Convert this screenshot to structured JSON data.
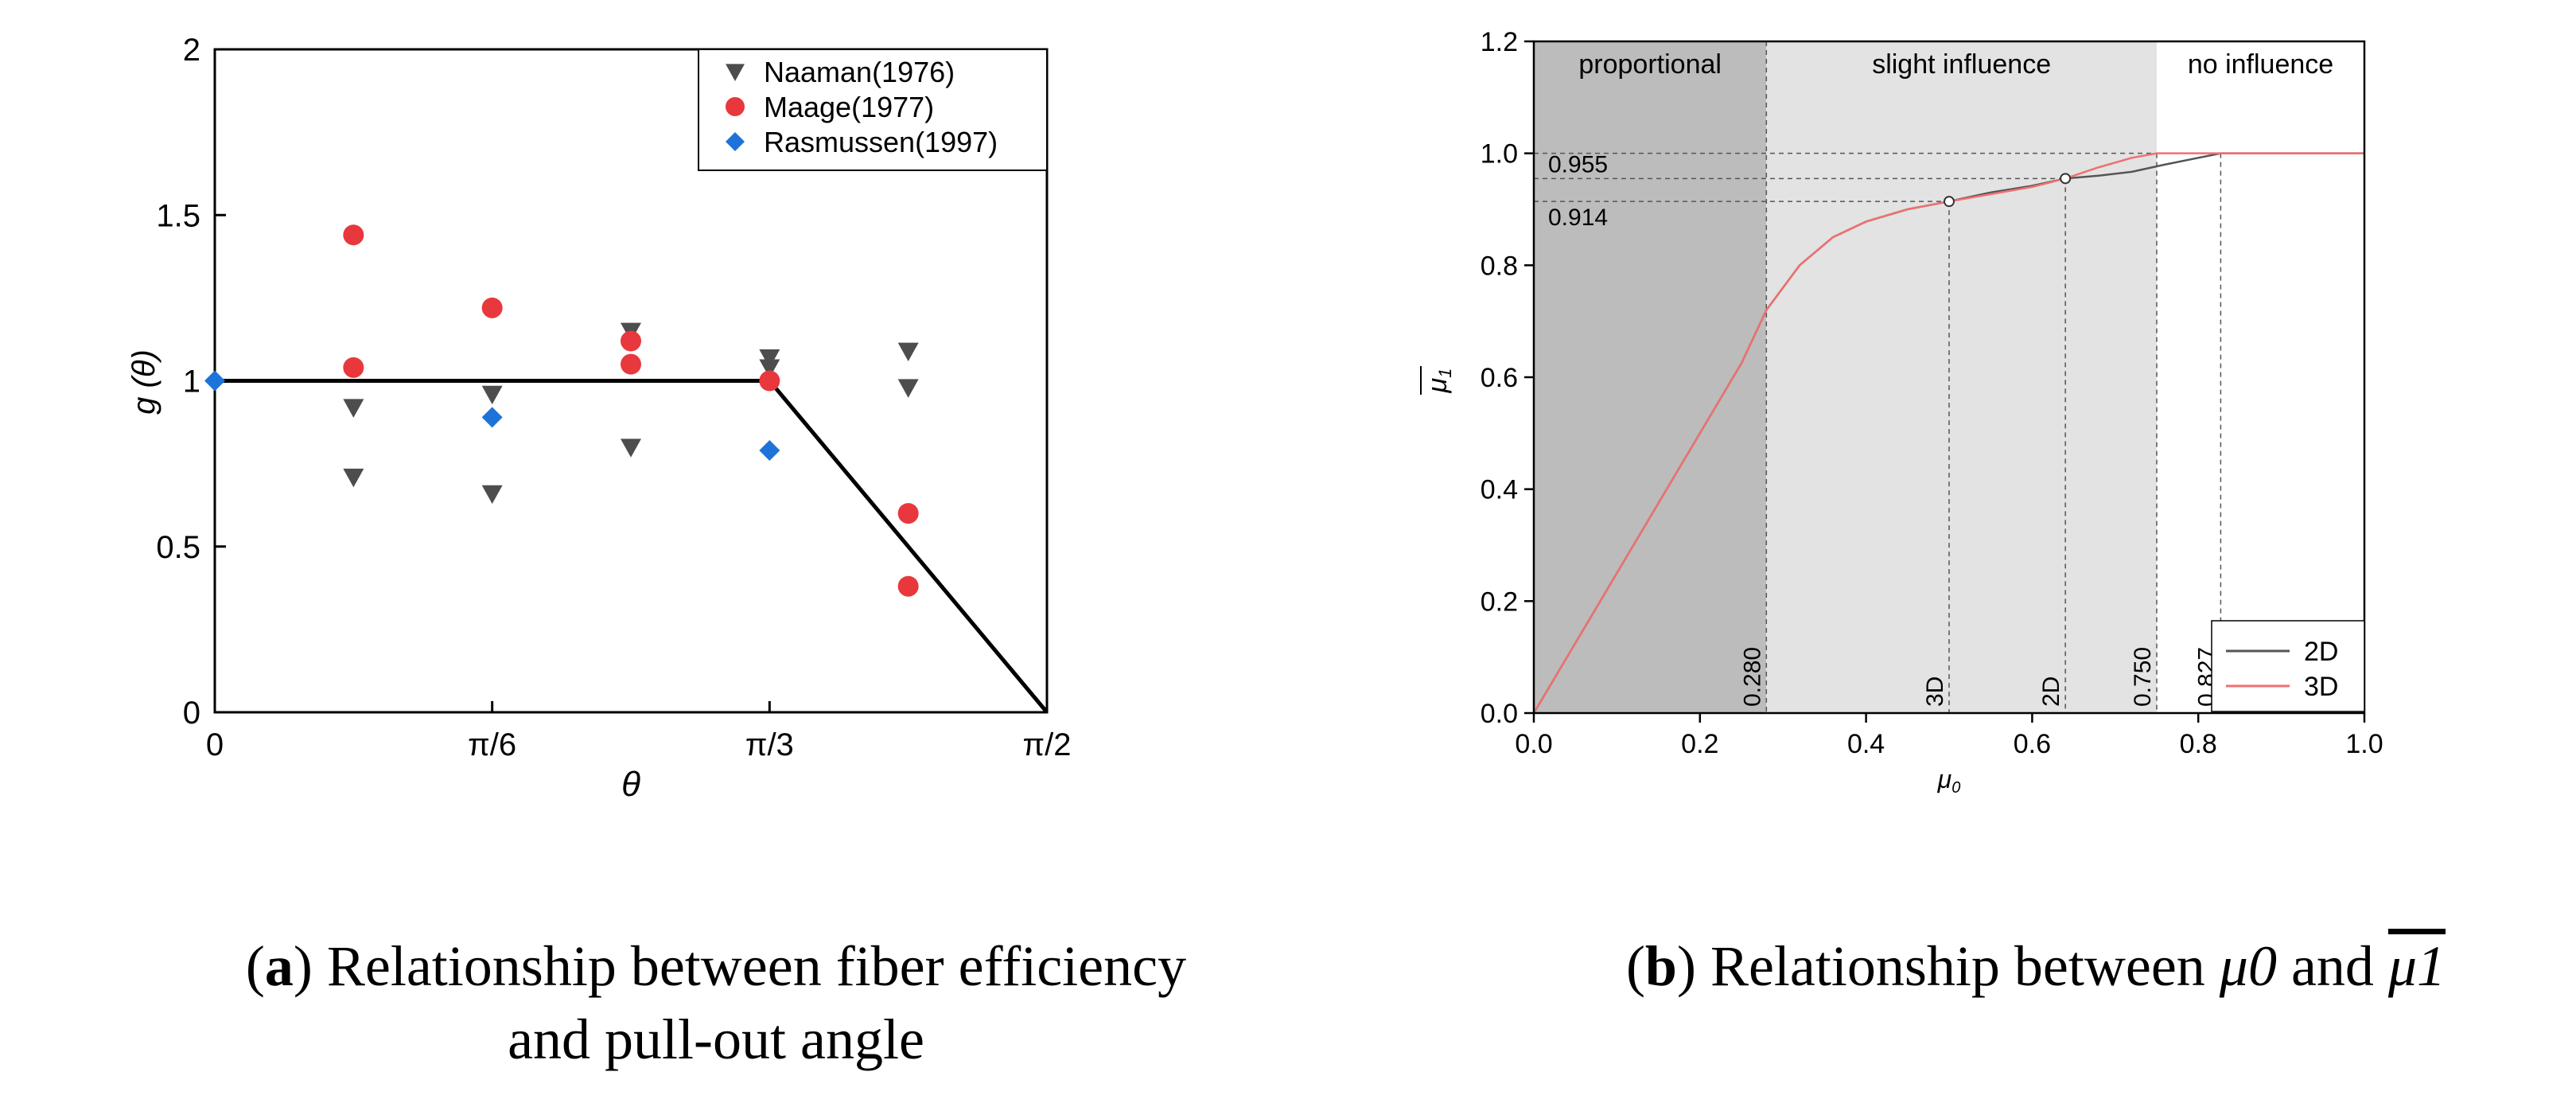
{
  "chart_data": [
    {
      "panel": "a",
      "type": "scatter",
      "title": "",
      "xlabel": "θ",
      "ylabel": "g (θ)",
      "xlim": [
        0,
        90
      ],
      "ylim": [
        0,
        2
      ],
      "x_ticks": [
        {
          "value": 0,
          "label": "0"
        },
        {
          "value": 30,
          "label": "π/6"
        },
        {
          "value": 60,
          "label": "π/3"
        },
        {
          "value": 90,
          "label": "π/2"
        }
      ],
      "y_ticks": [
        {
          "value": 0,
          "label": "0"
        },
        {
          "value": 0.5,
          "label": "0.5"
        },
        {
          "value": 1,
          "label": "1"
        },
        {
          "value": 1.5,
          "label": "1.5"
        },
        {
          "value": 2,
          "label": "2"
        }
      ],
      "legend_position": "top-right",
      "series": [
        {
          "name": "Naaman(1976)",
          "marker": "triangle-down",
          "color": "#4d4d4d",
          "points": [
            [
              15,
              0.92
            ],
            [
              15,
              0.71
            ],
            [
              30,
              0.96
            ],
            [
              30,
              0.66
            ],
            [
              45,
              1.15
            ],
            [
              45,
              0.8
            ],
            [
              60,
              1.07
            ],
            [
              60,
              1.04
            ],
            [
              75,
              1.09
            ],
            [
              75,
              0.98
            ]
          ]
        },
        {
          "name": "Maage(1977)",
          "marker": "circle",
          "color": "#e8383d",
          "points": [
            [
              15,
              1.44
            ],
            [
              15,
              1.04
            ],
            [
              30,
              1.22
            ],
            [
              45,
              1.12
            ],
            [
              45,
              1.05
            ],
            [
              60,
              1.0
            ],
            [
              75,
              0.6
            ],
            [
              75,
              0.38
            ]
          ]
        },
        {
          "name": "Rasmussen(1997)",
          "marker": "diamond",
          "color": "#1e73d8",
          "points": [
            [
              0,
              1.0
            ],
            [
              30,
              0.89
            ],
            [
              60,
              0.79
            ]
          ]
        }
      ],
      "model_line": {
        "name": "model",
        "color": "#000000",
        "points": [
          [
            0,
            1
          ],
          [
            60,
            1
          ],
          [
            90,
            0
          ]
        ]
      }
    },
    {
      "panel": "b",
      "type": "line",
      "title": "",
      "xlabel": "μ0",
      "ylabel": "μ1 (mean)",
      "xlim": [
        0,
        1
      ],
      "ylim": [
        0,
        1.2
      ],
      "x_ticks": [
        0.0,
        0.2,
        0.4,
        0.6,
        0.8,
        1.0
      ],
      "y_ticks": [
        0.0,
        0.2,
        0.4,
        0.6,
        0.8,
        1.0,
        1.2
      ],
      "regions": [
        {
          "label": "proportional",
          "from": 0,
          "to": 0.28,
          "color": "#bcbcbc"
        },
        {
          "label": "slight influence",
          "from": 0.28,
          "to": 0.75,
          "color": "#e3e3e3"
        },
        {
          "label": "no influence",
          "from": 0.75,
          "to": 1.0,
          "color": "#ffffff"
        }
      ],
      "series": [
        {
          "name": "2D",
          "color": "#555555",
          "x": [
            0,
            0.05,
            0.1,
            0.15,
            0.2,
            0.25,
            0.28,
            0.32,
            0.36,
            0.4,
            0.45,
            0.5,
            0.55,
            0.6,
            0.64,
            0.68,
            0.72,
            0.76,
            0.8,
            0.827,
            1.0
          ],
          "y": [
            0,
            0.125,
            0.25,
            0.375,
            0.5,
            0.625,
            0.72,
            0.8,
            0.85,
            0.878,
            0.9,
            0.914,
            0.93,
            0.942,
            0.955,
            0.96,
            0.967,
            0.98,
            0.992,
            1.0,
            1.0
          ]
        },
        {
          "name": "3D",
          "color": "#f07070",
          "x": [
            0,
            0.05,
            0.1,
            0.15,
            0.2,
            0.25,
            0.28,
            0.32,
            0.36,
            0.4,
            0.45,
            0.5,
            0.55,
            0.6,
            0.64,
            0.68,
            0.72,
            0.75,
            1.0
          ],
          "y": [
            0,
            0.125,
            0.25,
            0.375,
            0.5,
            0.625,
            0.72,
            0.8,
            0.85,
            0.878,
            0.9,
            0.914,
            0.927,
            0.94,
            0.955,
            0.975,
            0.992,
            1.0,
            1.0
          ]
        }
      ],
      "vertical_markers": [
        {
          "x": 0.28,
          "label": "0.280",
          "y_top": 1.2
        },
        {
          "x": 0.5,
          "label": "3D",
          "y_top": 0.914
        },
        {
          "x": 0.64,
          "label": "2D",
          "y_top": 0.955
        },
        {
          "x": 0.75,
          "label": "0.750",
          "y_top": 1.0
        },
        {
          "x": 0.827,
          "label": "0.827",
          "y_top": 1.0
        }
      ],
      "horizontal_markers": [
        {
          "y": 1.0,
          "x_end": 0.827,
          "label": ""
        },
        {
          "y": 0.955,
          "x_end": 0.64,
          "label": "0.955"
        },
        {
          "y": 0.914,
          "x_end": 0.5,
          "label": "0.914"
        }
      ],
      "legend_position": "bottom-right"
    }
  ],
  "captions": {
    "a_letter": "a",
    "a_line1_rest": ") Relationship between fiber efficiency",
    "a_line2": "and pull-out angle",
    "b_letter": "b",
    "b_rest": ") Relationship between",
    "b_mu0": "μ0",
    "b_and": "and",
    "b_mu1": "μ1"
  }
}
